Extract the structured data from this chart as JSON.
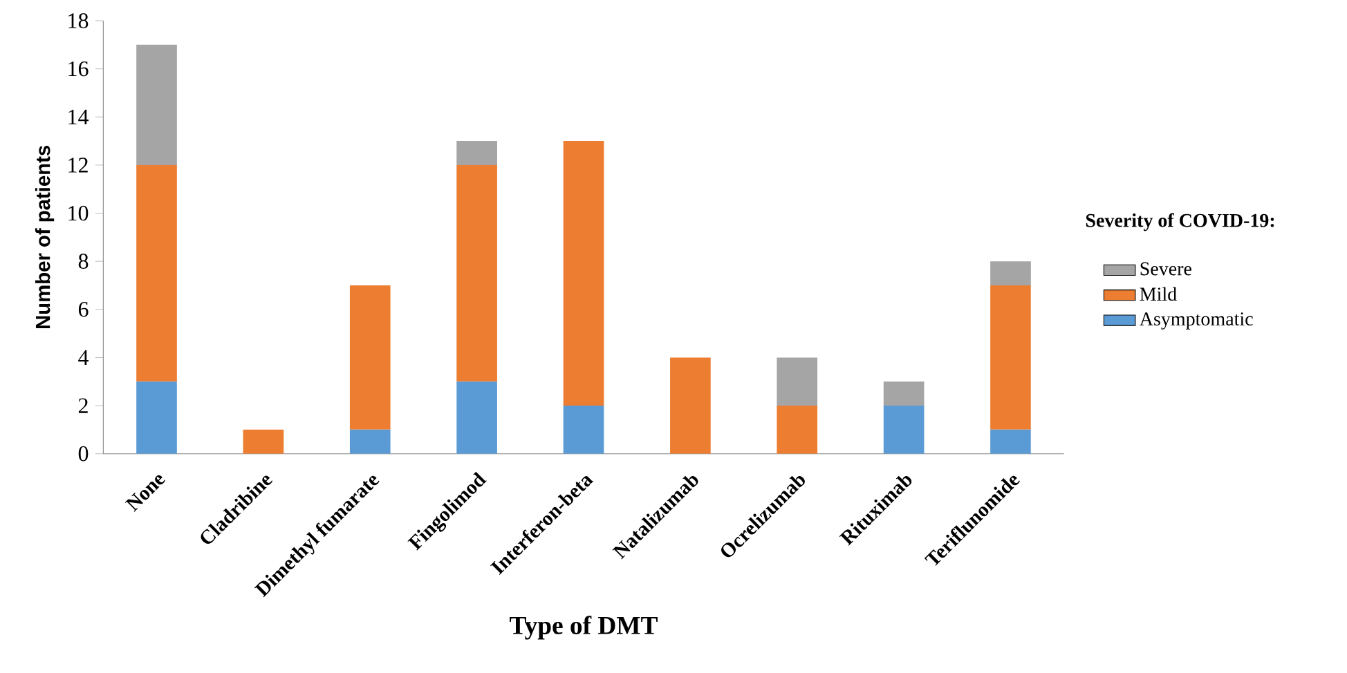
{
  "chart_data": {
    "type": "bar",
    "stacked": true,
    "xlabel": "Type of DMT",
    "ylabel": "Number of patients",
    "legend_title": "Severity of COVID-19:",
    "legend": "right",
    "categories": [
      "None",
      "Cladribine",
      "Dimethyl fumarate",
      "Fingolimod",
      "Interferon-beta",
      "Natalizumab",
      "Ocrelizumab",
      "Rituximab",
      "Teriflunomide"
    ],
    "series": [
      {
        "name": "Asymptomatic",
        "color": "#5b9bd5",
        "values": [
          3,
          0,
          1,
          3,
          2,
          0,
          0,
          2,
          1
        ]
      },
      {
        "name": "Mild",
        "color": "#ed7d31",
        "values": [
          9,
          1,
          6,
          9,
          11,
          4,
          2,
          0,
          6
        ]
      },
      {
        "name": "Severe",
        "color": "#a5a5a5",
        "values": [
          5,
          0,
          0,
          1,
          0,
          0,
          2,
          1,
          1
        ]
      }
    ],
    "ylim": [
      0,
      18
    ],
    "yticks": [
      0,
      2,
      4,
      6,
      8,
      10,
      12,
      14,
      16,
      18
    ]
  }
}
